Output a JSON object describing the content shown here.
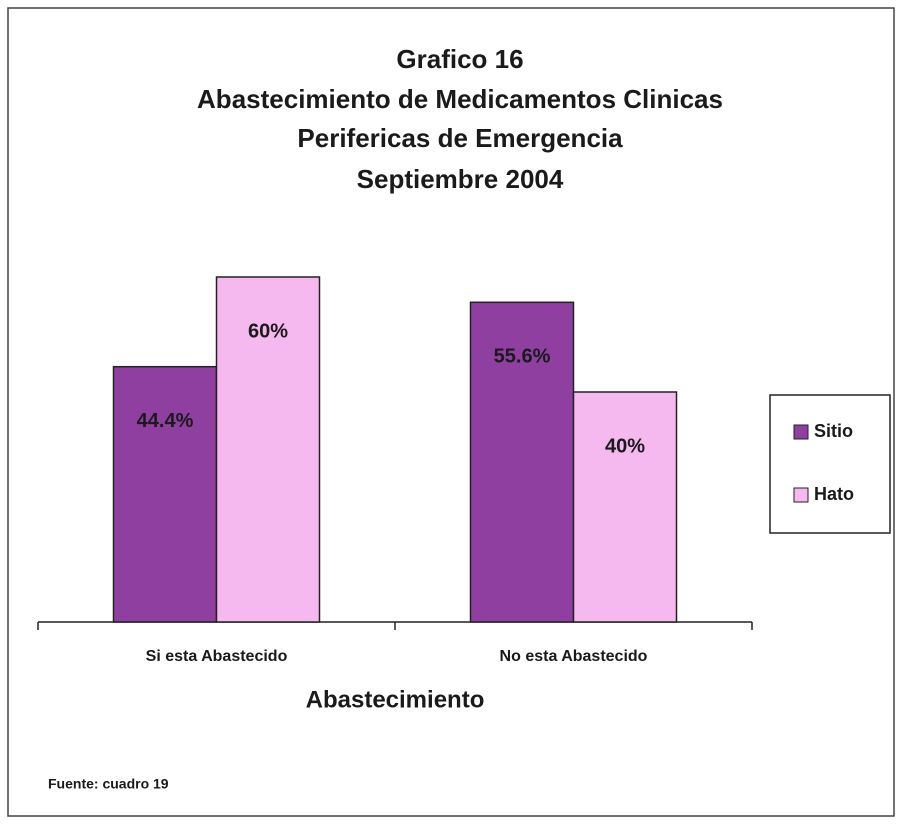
{
  "chart_data": {
    "type": "bar",
    "title": [
      "Grafico 16",
      "Abastecimiento de Medicamentos Clinicas",
      "Perifericas de Emergencia",
      "Septiembre 2004"
    ],
    "categories": [
      "Si esta Abastecido",
      "No esta Abastecido"
    ],
    "series": [
      {
        "name": "Sitio",
        "color": "#8e3fa0",
        "values": [
          44.4,
          55.6
        ],
        "value_labels": [
          "44.4%",
          "55.6%"
        ]
      },
      {
        "name": "Hato",
        "color": "#f6b9ef",
        "values": [
          60,
          40
        ],
        "value_labels": [
          "60%",
          "40%"
        ]
      }
    ],
    "xlabel": "Abastecimiento",
    "legend": "right",
    "note": "Fuente: cuadro 19"
  }
}
